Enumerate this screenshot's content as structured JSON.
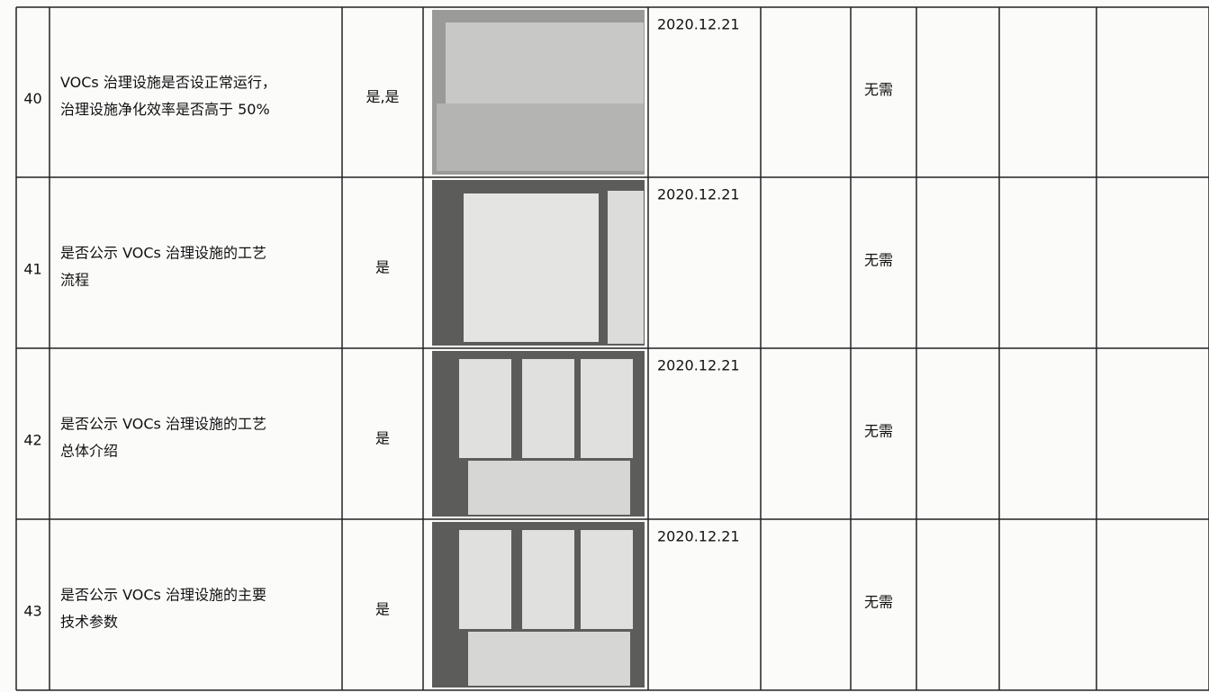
{
  "table": {
    "rows": [
      {
        "number": "40",
        "item": [
          "VOCs 治理设施是否设正常运行，",
          "治理设施净化效率是否高于 50%"
        ],
        "answer": "是,是",
        "date": "2020.12.21",
        "note": "无需"
      },
      {
        "number": "41",
        "item": [
          "是否公示 VOCs 治理设施的工艺",
          "流程"
        ],
        "answer": "是",
        "date": "2020.12.21",
        "note": "无需"
      },
      {
        "number": "42",
        "item": [
          "是否公示 VOCs 治理设施的工艺",
          "总体介绍"
        ],
        "answer": "是",
        "date": "2020.12.21",
        "note": "无需"
      },
      {
        "number": "43",
        "item": [
          "是否公示 VOCs 治理设施的主要",
          "技术参数"
        ],
        "answer": "是",
        "date": "2020.12.21",
        "note": "无需"
      }
    ]
  }
}
